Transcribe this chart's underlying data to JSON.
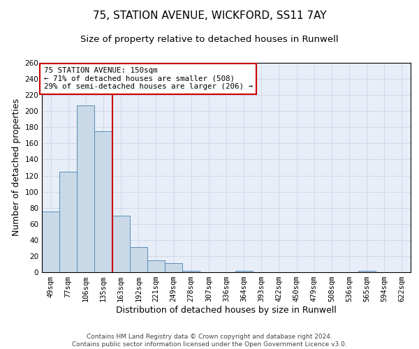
{
  "title_line1": "75, STATION AVENUE, WICKFORD, SS11 7AY",
  "title_line2": "Size of property relative to detached houses in Runwell",
  "xlabel": "Distribution of detached houses by size in Runwell",
  "ylabel": "Number of detached properties",
  "categories": [
    "49sqm",
    "77sqm",
    "106sqm",
    "135sqm",
    "163sqm",
    "192sqm",
    "221sqm",
    "249sqm",
    "278sqm",
    "307sqm",
    "336sqm",
    "364sqm",
    "393sqm",
    "422sqm",
    "450sqm",
    "479sqm",
    "508sqm",
    "536sqm",
    "565sqm",
    "594sqm",
    "622sqm"
  ],
  "values": [
    75,
    125,
    207,
    175,
    70,
    31,
    15,
    11,
    2,
    0,
    0,
    2,
    0,
    0,
    0,
    0,
    0,
    0,
    2,
    0,
    0
  ],
  "bar_color": "#c9d9e8",
  "bar_edge_color": "#5b8db8",
  "vline_color": "#cc0000",
  "vline_x_index": 3,
  "annotation_text": "75 STATION AVENUE: 150sqm\n← 71% of detached houses are smaller (508)\n29% of semi-detached houses are larger (206) →",
  "annotation_box_color": "#ffffff",
  "annotation_box_edge": "#cc0000",
  "ylim": [
    0,
    260
  ],
  "yticks": [
    0,
    20,
    40,
    60,
    80,
    100,
    120,
    140,
    160,
    180,
    200,
    220,
    240,
    260
  ],
  "grid_color": "#d0d8e8",
  "bg_color": "#e8eef8",
  "footer": "Contains HM Land Registry data © Crown copyright and database right 2024.\nContains public sector information licensed under the Open Government Licence v3.0.",
  "title_fontsize": 11,
  "subtitle_fontsize": 9.5,
  "axis_label_fontsize": 9,
  "tick_fontsize": 7.5,
  "footer_fontsize": 6.5,
  "annotation_fontsize": 7.8
}
